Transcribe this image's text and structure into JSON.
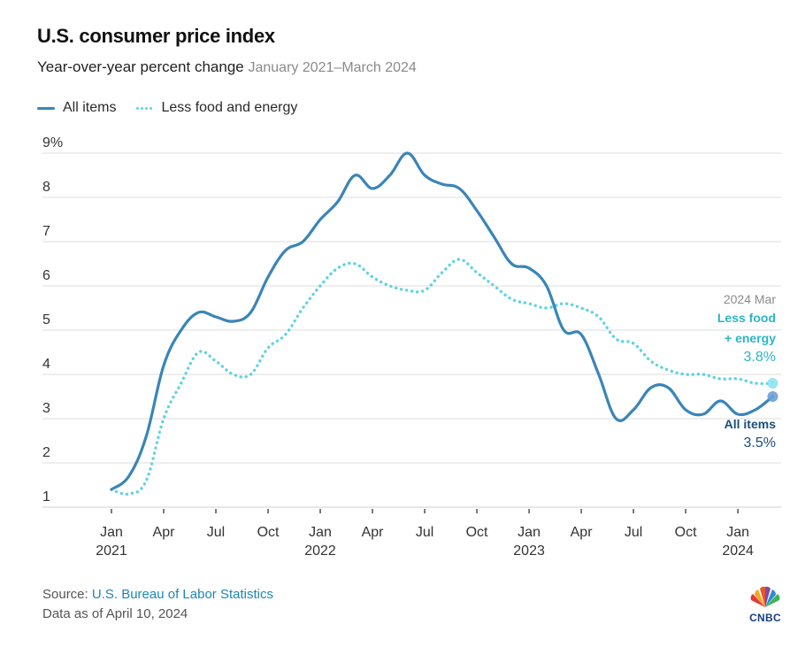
{
  "header": {
    "title": "U.S. consumer price index",
    "subtitle": "Year-over-year percent change",
    "date_range": "January 2021–March 2024"
  },
  "legend": [
    {
      "label": "All items",
      "style": "solid",
      "color": "#3a85b8"
    },
    {
      "label": "Less food and energy",
      "style": "dotted",
      "color": "#5fd3e2"
    }
  ],
  "annotation": {
    "period": "2024 Mar",
    "core_label_line1": "Less food",
    "core_label_line2": "+ energy",
    "core_value": "3.8%",
    "all_label": "All items",
    "all_value": "3.5%"
  },
  "footer": {
    "source_prefix": "Source:",
    "source_name": "U.S. Bureau of Labor Statistics",
    "data_as_of": "Data as of April 10, 2024"
  },
  "logo": {
    "text": "CNBC"
  },
  "chart_data": {
    "type": "line",
    "title": "U.S. consumer price index",
    "subtitle": "Year-over-year percent change, January 2021–March 2024",
    "xlabel": "",
    "ylabel": "",
    "ylim": [
      1,
      9
    ],
    "yticks": [
      1,
      2,
      3,
      4,
      5,
      6,
      7,
      8,
      9
    ],
    "ytick_labels": [
      "1",
      "2",
      "3",
      "4",
      "5",
      "6",
      "7",
      "8",
      "9%"
    ],
    "xticks": [
      {
        "month_index": 0,
        "label": "Jan",
        "year": "2021"
      },
      {
        "month_index": 3,
        "label": "Apr",
        "year": ""
      },
      {
        "month_index": 6,
        "label": "Jul",
        "year": ""
      },
      {
        "month_index": 9,
        "label": "Oct",
        "year": ""
      },
      {
        "month_index": 12,
        "label": "Jan",
        "year": "2022"
      },
      {
        "month_index": 15,
        "label": "Apr",
        "year": ""
      },
      {
        "month_index": 18,
        "label": "Jul",
        "year": ""
      },
      {
        "month_index": 21,
        "label": "Oct",
        "year": ""
      },
      {
        "month_index": 24,
        "label": "Jan",
        "year": "2023"
      },
      {
        "month_index": 27,
        "label": "Apr",
        "year": ""
      },
      {
        "month_index": 30,
        "label": "Jul",
        "year": ""
      },
      {
        "month_index": 33,
        "label": "Oct",
        "year": ""
      },
      {
        "month_index": 36,
        "label": "Jan",
        "year": "2024"
      }
    ],
    "grid": true,
    "legend_position": "top-left",
    "x": [
      "2021-01",
      "2021-02",
      "2021-03",
      "2021-04",
      "2021-05",
      "2021-06",
      "2021-07",
      "2021-08",
      "2021-09",
      "2021-10",
      "2021-11",
      "2021-12",
      "2022-01",
      "2022-02",
      "2022-03",
      "2022-04",
      "2022-05",
      "2022-06",
      "2022-07",
      "2022-08",
      "2022-09",
      "2022-10",
      "2022-11",
      "2022-12",
      "2023-01",
      "2023-02",
      "2023-03",
      "2023-04",
      "2023-05",
      "2023-06",
      "2023-07",
      "2023-08",
      "2023-09",
      "2023-10",
      "2023-11",
      "2023-12",
      "2024-01",
      "2024-02",
      "2024-03"
    ],
    "series": [
      {
        "name": "All items",
        "style": "solid",
        "color": "#3a85b8",
        "values": [
          1.4,
          1.7,
          2.6,
          4.2,
          5.0,
          5.4,
          5.3,
          5.2,
          5.4,
          6.2,
          6.8,
          7.0,
          7.5,
          7.9,
          8.5,
          8.2,
          8.5,
          9.0,
          8.5,
          8.3,
          8.2,
          7.7,
          7.1,
          6.5,
          6.4,
          6.0,
          5.0,
          4.9,
          4.0,
          3.0,
          3.2,
          3.7,
          3.7,
          3.2,
          3.1,
          3.4,
          3.1,
          3.2,
          3.5
        ]
      },
      {
        "name": "Less food and energy",
        "style": "dotted",
        "color": "#5fd3e2",
        "values": [
          1.4,
          1.3,
          1.6,
          3.0,
          3.8,
          4.5,
          4.3,
          4.0,
          4.0,
          4.6,
          4.9,
          5.5,
          6.0,
          6.4,
          6.5,
          6.2,
          6.0,
          5.9,
          5.9,
          6.3,
          6.6,
          6.3,
          6.0,
          5.7,
          5.6,
          5.5,
          5.6,
          5.5,
          5.3,
          4.8,
          4.7,
          4.3,
          4.1,
          4.0,
          4.0,
          3.9,
          3.9,
          3.8,
          3.8
        ]
      }
    ]
  }
}
